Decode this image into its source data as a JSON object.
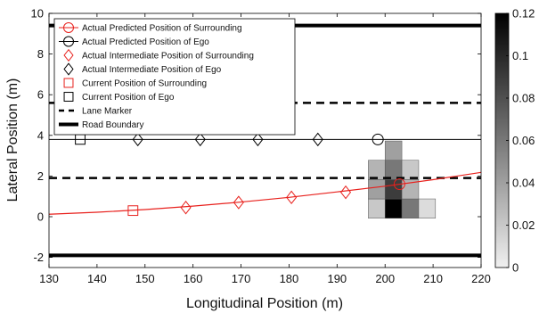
{
  "chart_data": {
    "type": "scatter",
    "xlabel": "Longitudinal Position (m)",
    "ylabel": "Lateral Position (m)",
    "xlim": [
      130,
      220
    ],
    "ylim": [
      -2.5,
      10
    ],
    "x_ticks": [
      130,
      140,
      150,
      160,
      170,
      180,
      190,
      200,
      210,
      220
    ],
    "y_ticks": [
      -2,
      0,
      2,
      4,
      6,
      8,
      10
    ],
    "legend_position": "top-left",
    "colors": {
      "surrounding": "#e8211d",
      "ego": "#000000"
    },
    "road_boundaries": [
      {
        "y": 9.4,
        "x_range": [
          130,
          220
        ]
      },
      {
        "y": -1.9,
        "x_range": [
          130,
          220
        ]
      }
    ],
    "lane_markers": [
      {
        "y": 5.6,
        "x_range": [
          130,
          220
        ]
      },
      {
        "y": 1.9,
        "x_range": [
          130,
          220
        ]
      }
    ],
    "series": [
      {
        "name": "Actual Predicted Position of Surrounding",
        "marker": "circle",
        "color": "#e8211d",
        "line": {
          "type": "curve",
          "x": [
            130,
            140,
            150,
            160,
            170,
            180,
            190,
            200,
            210,
            220
          ],
          "y": [
            0.12,
            0.22,
            0.35,
            0.52,
            0.72,
            0.95,
            1.22,
            1.5,
            1.82,
            2.18
          ]
        },
        "x": [
          203
        ],
        "y": [
          1.6
        ]
      },
      {
        "name": "Actual Predicted Position of Ego",
        "marker": "circle",
        "color": "#000000",
        "line": {
          "type": "straight",
          "y": 3.8,
          "x_range": [
            130,
            220
          ]
        },
        "x": [
          198.5
        ],
        "y": [
          3.8
        ]
      },
      {
        "name": "Actual Intermediate Position of Surrounding",
        "marker": "diamond",
        "color": "#e8211d",
        "x": [
          158.5,
          169.5,
          180.5,
          191.8
        ],
        "y": [
          0.45,
          0.7,
          0.95,
          1.2
        ]
      },
      {
        "name": "Actual Intermediate Position of Ego",
        "marker": "diamond",
        "color": "#000000",
        "x": [
          148.5,
          161.5,
          173.5,
          186
        ],
        "y": [
          3.8,
          3.8,
          3.8,
          3.8
        ]
      },
      {
        "name": "Current Position of Surrounding",
        "marker": "square",
        "color": "#e8211d",
        "x": [
          147.5
        ],
        "y": [
          0.3
        ]
      },
      {
        "name": "Current Position of Ego",
        "marker": "square",
        "color": "#000000",
        "x": [
          136.5
        ],
        "y": [
          3.8
        ]
      }
    ],
    "extra_legend": [
      {
        "name": "Lane Marker",
        "style": "dashed"
      },
      {
        "name": "Road Boundary",
        "style": "thick"
      }
    ],
    "heatmap": {
      "cell_width": 3.5,
      "cell_height": 0.95,
      "cells": [
        {
          "x": 198.25,
          "y": 0.4,
          "value": 0.02
        },
        {
          "x": 201.75,
          "y": 0.4,
          "value": 0.12
        },
        {
          "x": 205.25,
          "y": 0.4,
          "value": 0.06
        },
        {
          "x": 208.75,
          "y": 0.4,
          "value": 0.01
        },
        {
          "x": 198.25,
          "y": 1.35,
          "value": 0.04
        },
        {
          "x": 201.75,
          "y": 1.35,
          "value": 0.09
        },
        {
          "x": 205.25,
          "y": 1.35,
          "value": 0.03
        },
        {
          "x": 198.25,
          "y": 2.3,
          "value": 0.03
        },
        {
          "x": 201.75,
          "y": 2.3,
          "value": 0.06
        },
        {
          "x": 205.25,
          "y": 2.3,
          "value": 0.02
        },
        {
          "x": 201.75,
          "y": 3.25,
          "value": 0.04
        }
      ]
    },
    "colorbar": {
      "range": [
        0,
        0.12
      ],
      "ticks": [
        0,
        0.02,
        0.04,
        0.06,
        0.08,
        0.1,
        0.12
      ],
      "tick_labels": [
        "0",
        "0.02",
        "0.04",
        "0.06",
        "0.08",
        "0.1",
        "0.12"
      ]
    }
  }
}
